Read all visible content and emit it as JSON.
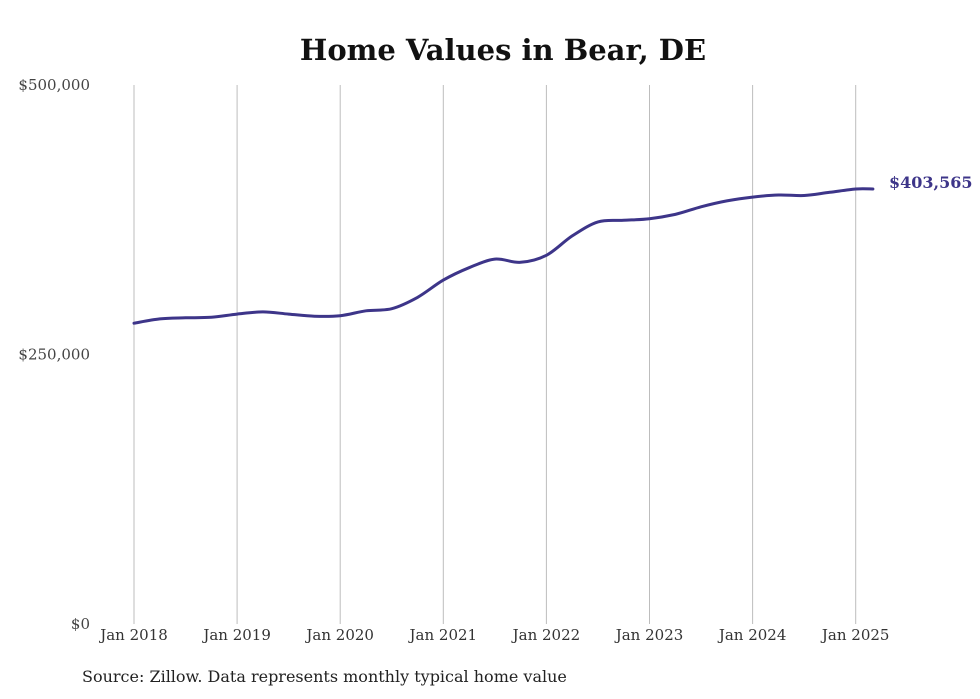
{
  "chart_data": {
    "type": "line",
    "title": "Home Values in Bear, DE",
    "xlabel": "",
    "ylabel": "",
    "ylim": [
      0,
      500000
    ],
    "yticks": [
      {
        "value": 0,
        "label": "$0"
      },
      {
        "value": 250000,
        "label": "$250,000"
      },
      {
        "value": 500000,
        "label": "$500,000"
      }
    ],
    "xlim": [
      "2018-01",
      "2025-03"
    ],
    "xticks": [
      {
        "value": "2018-01",
        "label": "Jan 2018"
      },
      {
        "value": "2019-01",
        "label": "Jan 2019"
      },
      {
        "value": "2020-01",
        "label": "Jan 2020"
      },
      {
        "value": "2021-01",
        "label": "Jan 2021"
      },
      {
        "value": "2022-01",
        "label": "Jan 2022"
      },
      {
        "value": "2023-01",
        "label": "Jan 2023"
      },
      {
        "value": "2024-01",
        "label": "Jan 2024"
      },
      {
        "value": "2025-01",
        "label": "Jan 2025"
      }
    ],
    "grid": "vertical",
    "line_color": "#3d3589",
    "series": [
      {
        "points": [
          {
            "x": "2018-01",
            "y": 279000
          },
          {
            "x": "2018-04",
            "y": 283000
          },
          {
            "x": "2018-07",
            "y": 284000
          },
          {
            "x": "2018-10",
            "y": 284500
          },
          {
            "x": "2019-01",
            "y": 287500
          },
          {
            "x": "2019-04",
            "y": 289500
          },
          {
            "x": "2019-07",
            "y": 287500
          },
          {
            "x": "2019-10",
            "y": 285500
          },
          {
            "x": "2020-01",
            "y": 286000
          },
          {
            "x": "2020-04",
            "y": 290500
          },
          {
            "x": "2020-07",
            "y": 292500
          },
          {
            "x": "2020-10",
            "y": 303000
          },
          {
            "x": "2021-01",
            "y": 319000
          },
          {
            "x": "2021-04",
            "y": 330500
          },
          {
            "x": "2021-07",
            "y": 338500
          },
          {
            "x": "2021-10",
            "y": 335500
          },
          {
            "x": "2022-01",
            "y": 342000
          },
          {
            "x": "2022-04",
            "y": 360000
          },
          {
            "x": "2022-07",
            "y": 373000
          },
          {
            "x": "2022-10",
            "y": 374500
          },
          {
            "x": "2023-01",
            "y": 376000
          },
          {
            "x": "2023-04",
            "y": 380000
          },
          {
            "x": "2023-07",
            "y": 387000
          },
          {
            "x": "2023-10",
            "y": 392500
          },
          {
            "x": "2024-01",
            "y": 396000
          },
          {
            "x": "2024-04",
            "y": 398000
          },
          {
            "x": "2024-07",
            "y": 397500
          },
          {
            "x": "2024-10",
            "y": 400500
          },
          {
            "x": "2025-01",
            "y": 403500
          },
          {
            "x": "2025-03",
            "y": 403565
          }
        ]
      }
    ],
    "end_label": "$403,565"
  },
  "footer": {
    "source": "Source: Zillow. Data represents monthly typical home value"
  }
}
